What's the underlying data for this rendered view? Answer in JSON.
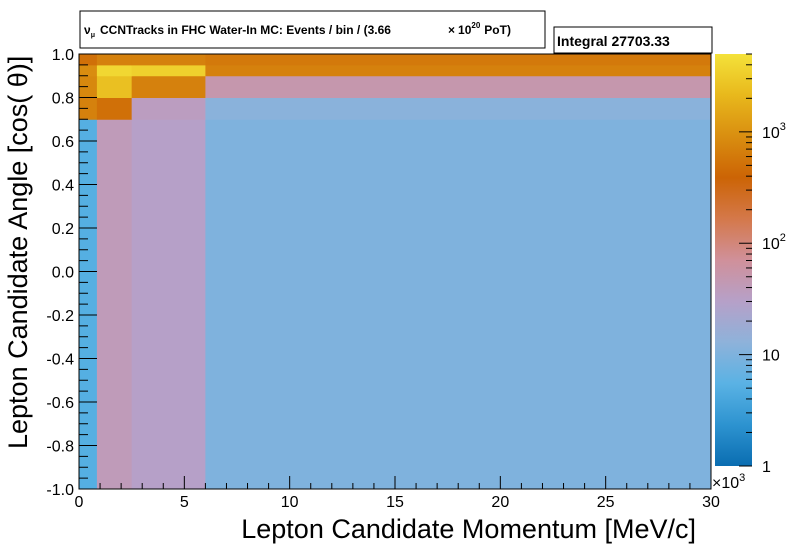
{
  "chart_data": {
    "type": "heatmap",
    "title": {
      "main": "CCNTracks in FHC Water-In MC: Events / bin / (3.66",
      "symbol": "ν",
      "subscript": "μ",
      "times": "×",
      "power_base": "10",
      "power_exp": "20",
      "suffix": "PoT)"
    },
    "stats_label": "Integral 27703.33",
    "xlabel": "Lepton Candidate Momentum [MeV/c]",
    "ylabel": "Lepton Candidate Angle [cos(  θ)]",
    "x_multiplier": {
      "base": "×10",
      "exp": "3"
    },
    "xlim": [
      0,
      30
    ],
    "ylim": [
      -1.0,
      1.0
    ],
    "x_edges": [
      0,
      0.85,
      2.5,
      6,
      30
    ],
    "y_edges": [
      -1.0,
      0.7,
      0.8,
      0.9,
      0.95,
      1.0
    ],
    "z_log": true,
    "zlim": [
      1,
      5000
    ],
    "grid": false,
    "cells": [
      [
        5,
        40,
        30,
        10
      ],
      [
        700,
        500,
        35,
        12
      ],
      [
        800,
        2500,
        700,
        50
      ],
      [
        900,
        4000,
        3500,
        700
      ],
      [
        500,
        700,
        700,
        600
      ]
    ],
    "x_ticks": [
      {
        "v": 0,
        "label": "0"
      },
      {
        "v": 5,
        "label": "5"
      },
      {
        "v": 10,
        "label": "10"
      },
      {
        "v": 15,
        "label": "15"
      },
      {
        "v": 20,
        "label": "20"
      },
      {
        "v": 25,
        "label": "25"
      },
      {
        "v": 30,
        "label": "30"
      }
    ],
    "y_ticks": [
      {
        "v": -1.0,
        "label": "-1.0"
      },
      {
        "v": -0.8,
        "label": "-0.8"
      },
      {
        "v": -0.6,
        "label": "-0.6"
      },
      {
        "v": -0.4,
        "label": "-0.4"
      },
      {
        "v": -0.2,
        "label": "-0.2"
      },
      {
        "v": 0.0,
        "label": "0.0"
      },
      {
        "v": 0.2,
        "label": "0.2"
      },
      {
        "v": 0.4,
        "label": "0.4"
      },
      {
        "v": 0.6,
        "label": "0.6"
      },
      {
        "v": 0.8,
        "label": "0.8"
      },
      {
        "v": 1.0,
        "label": "1.0"
      }
    ],
    "z_ticks": [
      {
        "v": 1,
        "base": "1",
        "exp": ""
      },
      {
        "v": 10,
        "base": "10",
        "exp": ""
      },
      {
        "v": 100,
        "base": "10",
        "exp": "2"
      },
      {
        "v": 1000,
        "base": "10",
        "exp": "3"
      }
    ],
    "palette": [
      "#0a6db1",
      "#2d93d0",
      "#5ab2e4",
      "#8eb2da",
      "#b6a0c8",
      "#d0909a",
      "#d4784a",
      "#cc6405",
      "#d98e10",
      "#e8b81c",
      "#f4e23a"
    ]
  }
}
